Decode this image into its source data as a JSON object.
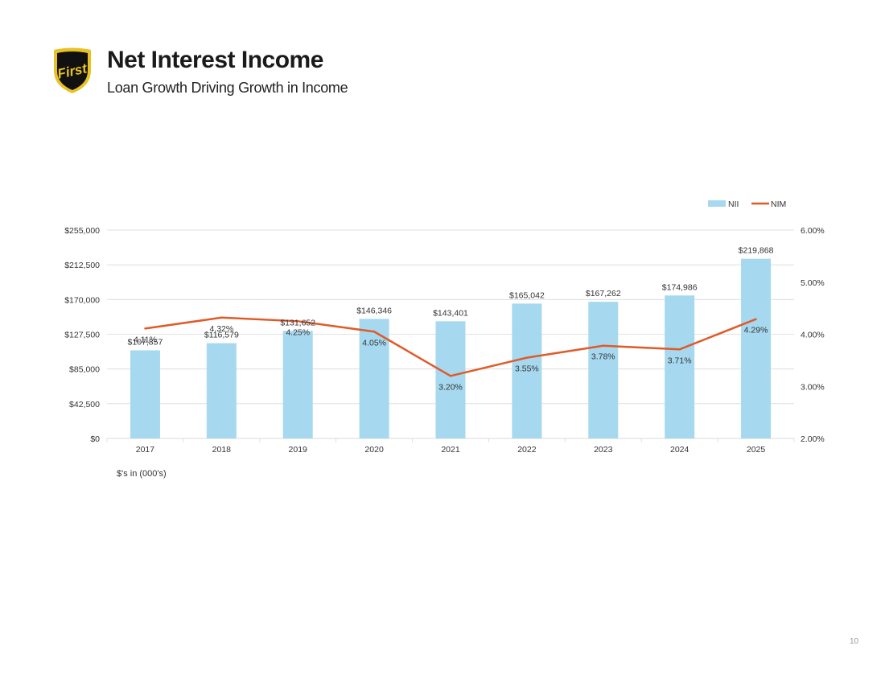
{
  "header": {
    "title": "Net Interest Income",
    "subtitle": "Loan Growth Driving Growth in Income",
    "logo_text": "First"
  },
  "note": "$'s in (000's)",
  "page_number": "10",
  "colors": {
    "bar": "#a6d9ef",
    "line": "#e05a28",
    "grid": "#d9d9d9",
    "logo_gold": "#e8c224",
    "logo_black": "#111111"
  },
  "chart_data": {
    "type": "bar",
    "categories": [
      "2017",
      "2018",
      "2019",
      "2020",
      "2021",
      "2022",
      "2023",
      "2024",
      "2025"
    ],
    "series": [
      {
        "name": "NII",
        "type": "bar",
        "axis": "left",
        "values": [
          107857,
          116579,
          131652,
          146346,
          143401,
          165042,
          167262,
          174986,
          219868
        ],
        "labels": [
          "$107,857",
          "$116,579",
          "$131,652",
          "$146,346",
          "$143,401",
          "$165,042",
          "$167,262",
          "$174,986",
          "$219,868"
        ]
      },
      {
        "name": "NIM",
        "type": "line",
        "axis": "right",
        "values": [
          4.11,
          4.32,
          4.25,
          4.05,
          3.2,
          3.55,
          3.78,
          3.71,
          4.29
        ],
        "labels": [
          "4.11%",
          "4.32%",
          "4.25%",
          "4.05%",
          "3.20%",
          "3.55%",
          "3.78%",
          "3.71%",
          "4.29%"
        ]
      }
    ],
    "y_left": {
      "ylim": [
        0,
        255000
      ],
      "ticks": [
        "$0",
        "$42,500",
        "$85,000",
        "$127,500",
        "$170,000",
        "$212,500",
        "$255,000"
      ]
    },
    "y_right": {
      "ylim": [
        2.0,
        6.0
      ],
      "ticks": [
        "2.00%",
        "3.00%",
        "4.00%",
        "5.00%",
        "6.00%"
      ]
    },
    "grid": true,
    "legend": "top-right"
  }
}
